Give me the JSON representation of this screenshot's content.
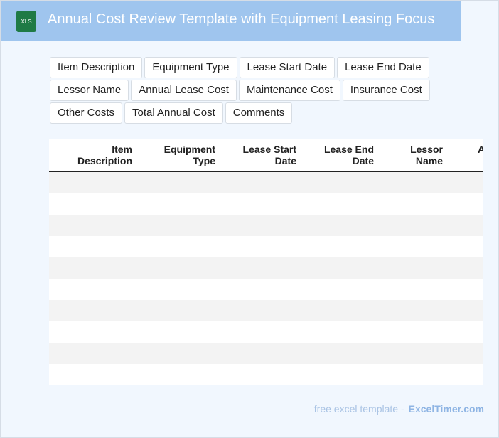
{
  "header": {
    "icon_label": "XLS",
    "title": "Annual Cost Review Template with Equipment Leasing Focus"
  },
  "tags": [
    "Item Description",
    "Equipment Type",
    "Lease Start Date",
    "Lease End Date",
    "Lessor Name",
    "Annual Lease Cost",
    "Maintenance Cost",
    "Insurance Cost",
    "Other Costs",
    "Total Annual Cost",
    "Comments"
  ],
  "table": {
    "columns": [
      "Item Description",
      "Equipment Type",
      "Lease Start Date",
      "Lease End Date",
      "Lessor Name",
      "Annual Lease Cost"
    ]
  },
  "footer": {
    "text": "free excel template -",
    "link": "ExcelTimer.com"
  }
}
